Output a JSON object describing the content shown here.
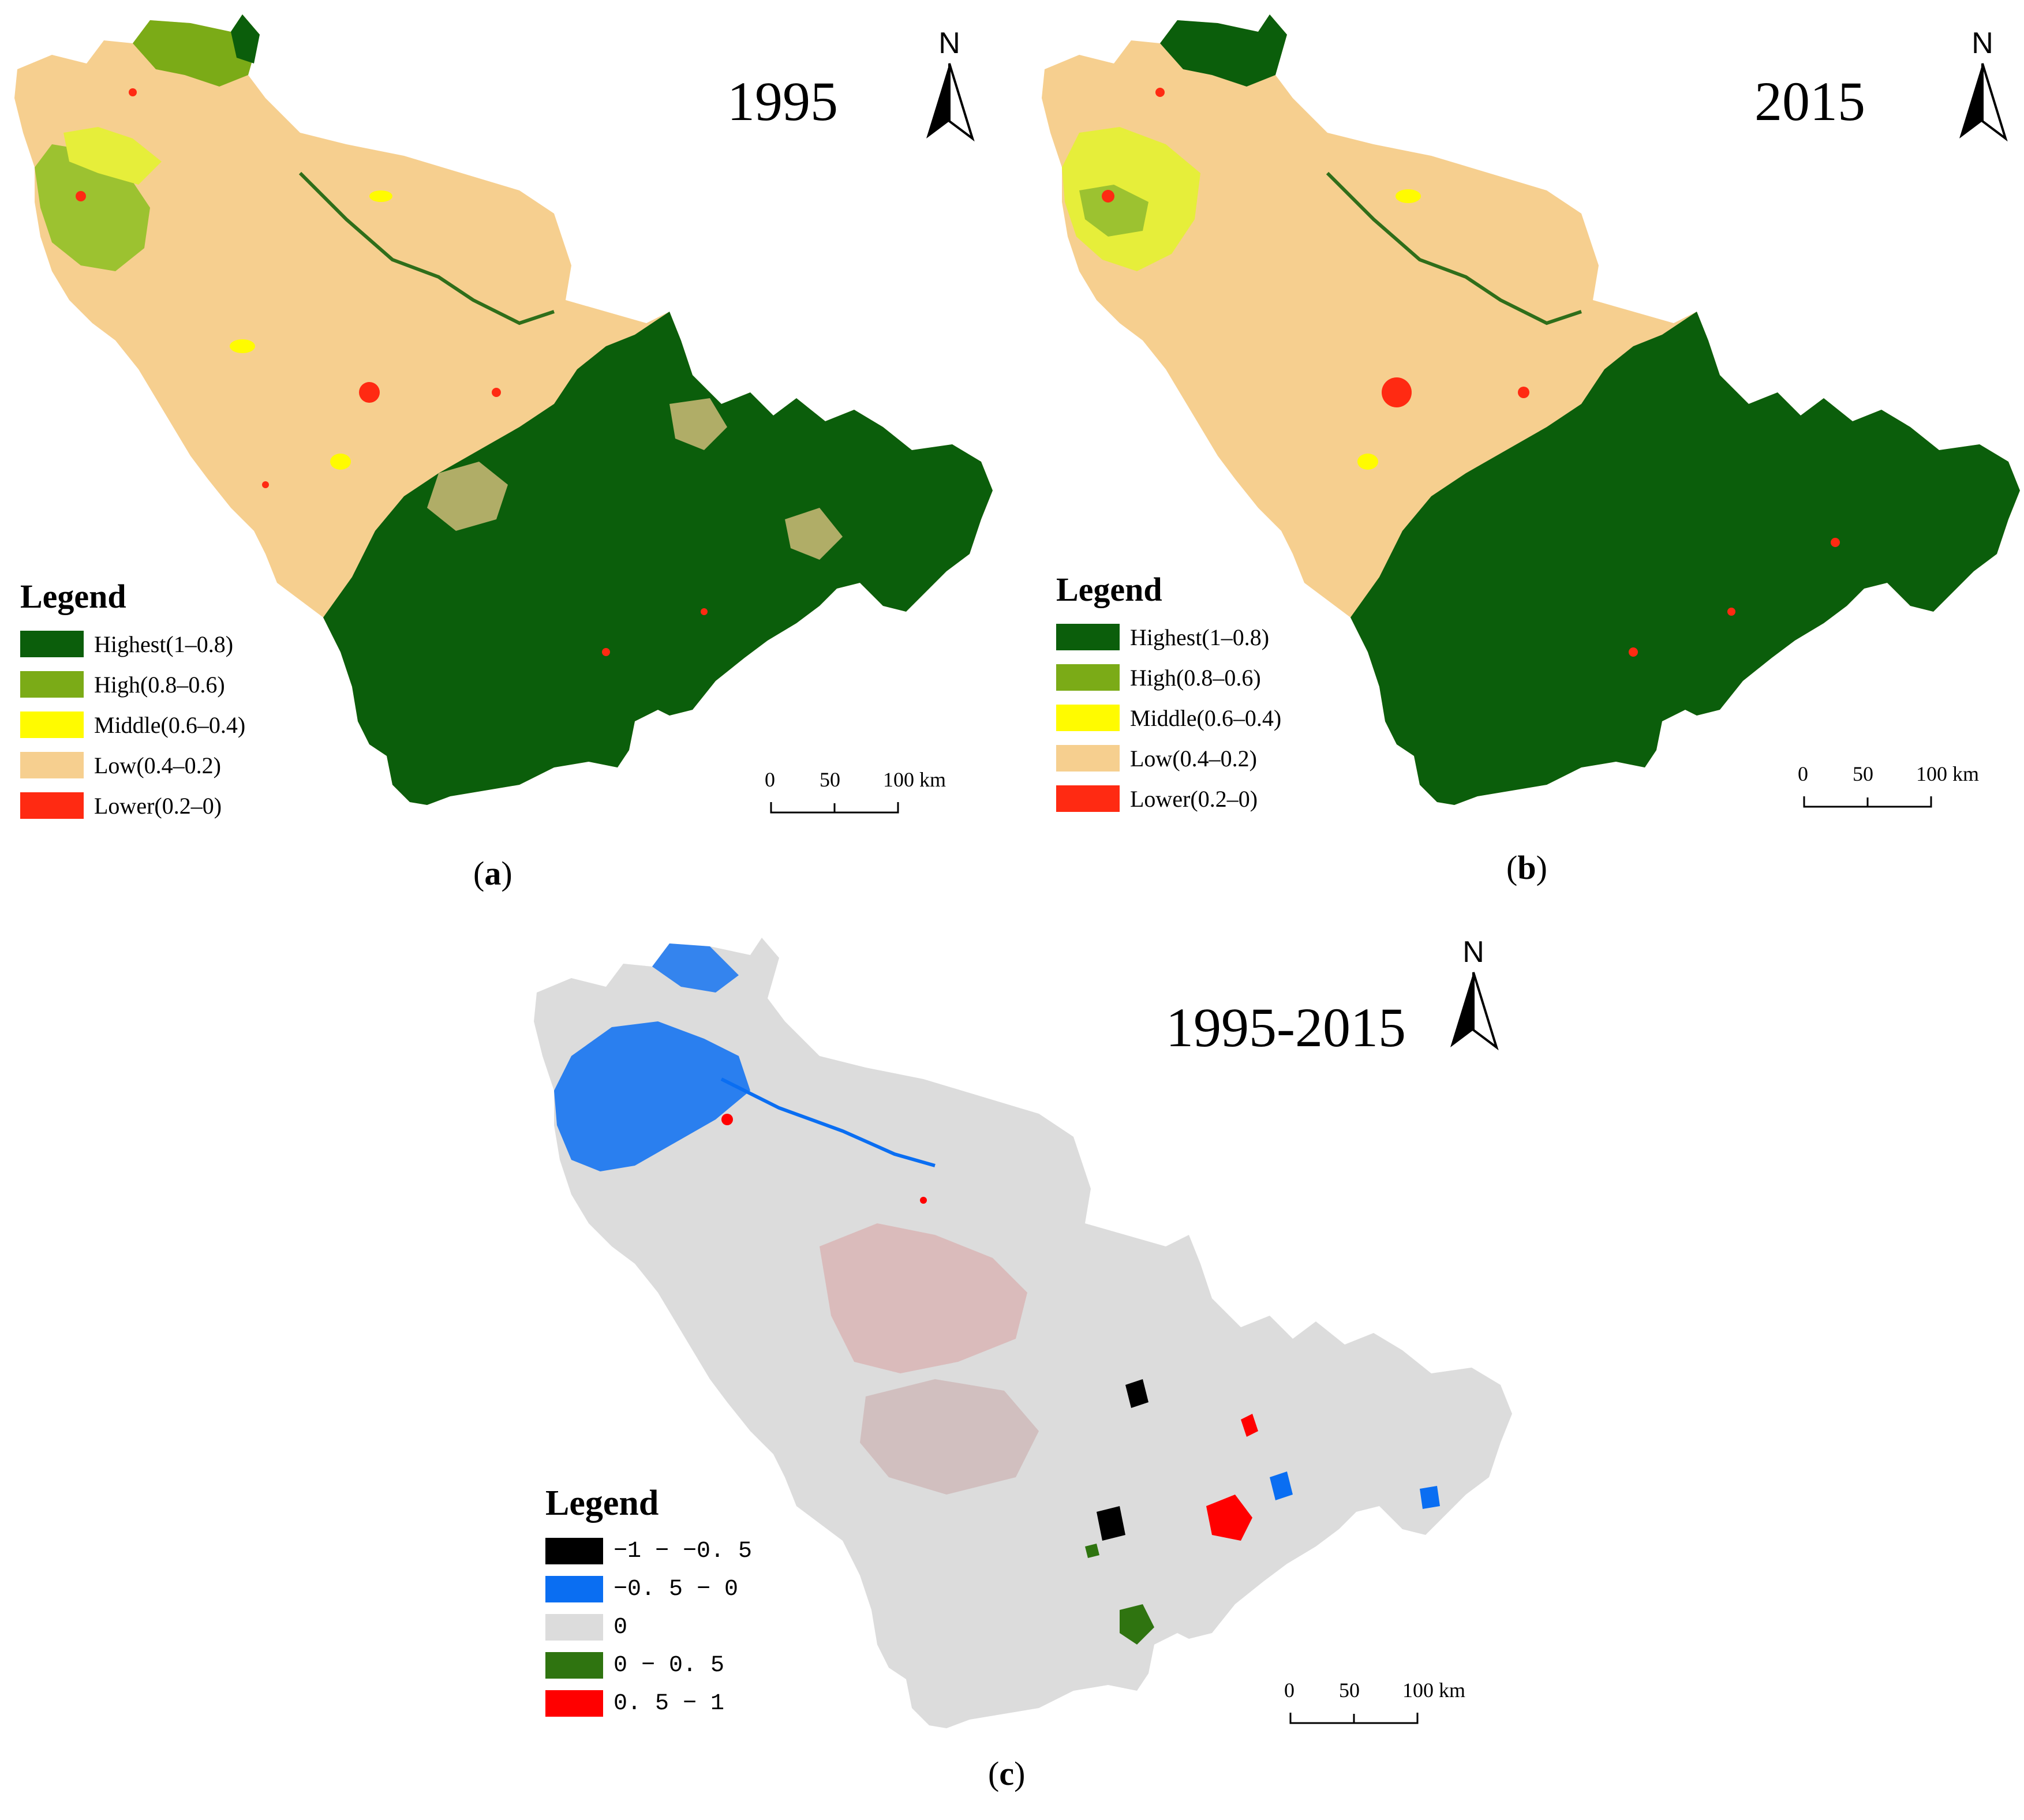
{
  "panels": [
    {
      "id": "a",
      "year_label": "1995",
      "caption_open": "(",
      "caption_letter": "a",
      "caption_close": ")",
      "north_label": "N",
      "legend": {
        "title": "Legend",
        "items": [
          {
            "label": "Highest(1–0.8)",
            "color": "#0b5e0b"
          },
          {
            "label": "High(0.8–0.6)",
            "color": "#7bab17"
          },
          {
            "label": "Middle(0.6–0.4)",
            "color": "#fffb00"
          },
          {
            "label": "Low(0.4–0.2)",
            "color": "#f6cf8f"
          },
          {
            "label": "Lower(0.2–0)",
            "color": "#ff2a12"
          }
        ]
      },
      "scale": {
        "ticks": [
          "0",
          "50",
          "100 km"
        ]
      }
    },
    {
      "id": "b",
      "year_label": "2015",
      "caption_open": "(",
      "caption_letter": "b",
      "caption_close": ")",
      "north_label": "N",
      "legend": {
        "title": "Legend",
        "items": [
          {
            "label": "Highest(1–0.8)",
            "color": "#0b5e0b"
          },
          {
            "label": "High(0.8–0.6)",
            "color": "#7bab17"
          },
          {
            "label": "Middle(0.6–0.4)",
            "color": "#fffb00"
          },
          {
            "label": "Low(0.4–0.2)",
            "color": "#f6cf8f"
          },
          {
            "label": "Lower(0.2–0)",
            "color": "#ff2a12"
          }
        ]
      },
      "scale": {
        "ticks": [
          "0",
          "50",
          "100 km"
        ]
      }
    },
    {
      "id": "c",
      "year_label": "1995-2015",
      "caption_open": "(",
      "caption_letter": "c",
      "caption_close": ")",
      "north_label": "N",
      "legend": {
        "title": "Legend",
        "items": [
          {
            "label": "−1 − −0. 5",
            "color": "#000000"
          },
          {
            "label": "−0. 5 − 0",
            "color": "#0a6ef2"
          },
          {
            "label": "0",
            "color": "#dcdcdc"
          },
          {
            "label": "0 − 0. 5",
            "color": "#2f7410"
          },
          {
            "label": "0. 5 − 1",
            "color": "#ff0000"
          }
        ]
      },
      "scale": {
        "ticks": [
          "0",
          "50",
          "100 km"
        ]
      }
    }
  ]
}
